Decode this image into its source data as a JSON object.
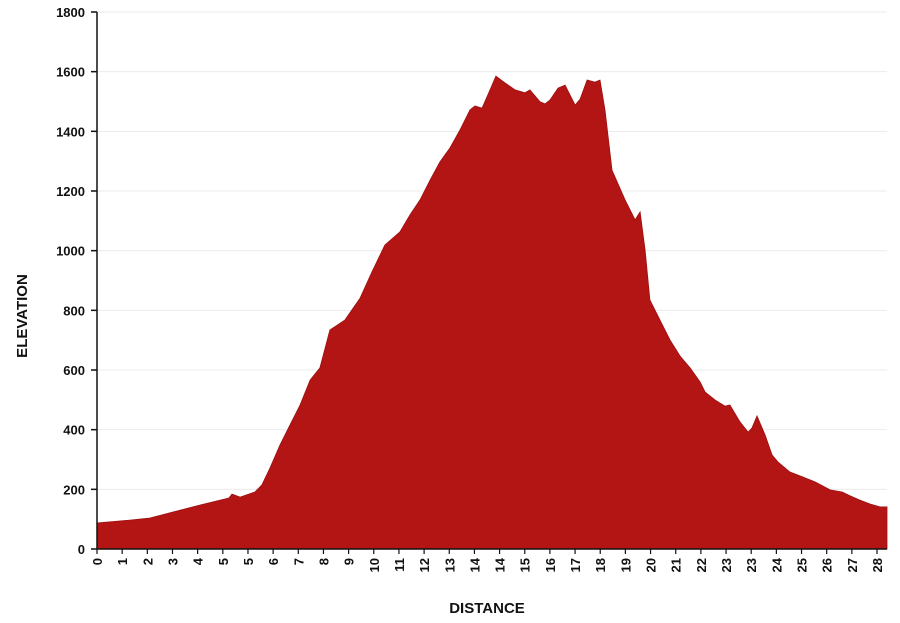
{
  "chart_data": {
    "type": "area",
    "title": "",
    "xlabel": "DISTANCE",
    "ylabel": "ELEVATION",
    "ylim": [
      0,
      1800
    ],
    "xlim": [
      0,
      28.32
    ],
    "yticks": [
      0,
      200,
      400,
      600,
      800,
      1000,
      1200,
      1400,
      1600,
      1800
    ],
    "xtick_labels": [
      "0",
      "1",
      "2",
      "3",
      "4",
      "5",
      "5",
      "6",
      "7",
      "8",
      "9",
      "10",
      "11",
      "12",
      "13",
      "14",
      "14",
      "15",
      "16",
      "17",
      "18",
      "19",
      "20",
      "21",
      "22",
      "23",
      "23",
      "24",
      "25",
      "26",
      "27",
      "28"
    ],
    "grid": true,
    "fill_color": "#B31515",
    "points": [
      [
        0,
        87
      ],
      [
        1.18,
        97
      ],
      [
        1.9,
        104
      ],
      [
        3.68,
        147
      ],
      [
        4.73,
        171
      ],
      [
        4.84,
        184
      ],
      [
        5.13,
        174
      ],
      [
        5.66,
        191
      ],
      [
        5.91,
        215
      ],
      [
        6.2,
        272
      ],
      [
        6.56,
        349
      ],
      [
        6.92,
        416
      ],
      [
        7.28,
        483
      ],
      [
        7.64,
        566
      ],
      [
        7.99,
        607
      ],
      [
        8.35,
        734
      ],
      [
        8.89,
        768
      ],
      [
        9.43,
        841
      ],
      [
        9.86,
        929
      ],
      [
        10.32,
        1019
      ],
      [
        10.86,
        1063
      ],
      [
        11.22,
        1120
      ],
      [
        11.58,
        1170
      ],
      [
        11.94,
        1237
      ],
      [
        12.29,
        1297
      ],
      [
        12.65,
        1344
      ],
      [
        13.01,
        1404
      ],
      [
        13.37,
        1472
      ],
      [
        13.55,
        1485
      ],
      [
        13.8,
        1478
      ],
      [
        14.09,
        1539
      ],
      [
        14.3,
        1585
      ],
      [
        14.63,
        1562
      ],
      [
        14.99,
        1539
      ],
      [
        15.34,
        1529
      ],
      [
        15.52,
        1539
      ],
      [
        15.88,
        1499
      ],
      [
        16.06,
        1492
      ],
      [
        16.24,
        1505
      ],
      [
        16.53,
        1545
      ],
      [
        16.78,
        1555
      ],
      [
        17.14,
        1488
      ],
      [
        17.32,
        1508
      ],
      [
        17.57,
        1572
      ],
      [
        17.85,
        1565
      ],
      [
        18.03,
        1572
      ],
      [
        18.21,
        1472
      ],
      [
        18.46,
        1270
      ],
      [
        18.93,
        1170
      ],
      [
        19.29,
        1103
      ],
      [
        19.47,
        1130
      ],
      [
        19.65,
        1002
      ],
      [
        19.82,
        835
      ],
      [
        20.18,
        768
      ],
      [
        20.54,
        701
      ],
      [
        20.9,
        647
      ],
      [
        21.26,
        607
      ],
      [
        21.62,
        560
      ],
      [
        21.8,
        526
      ],
      [
        22.16,
        499
      ],
      [
        22.51,
        479
      ],
      [
        22.69,
        483
      ],
      [
        23.05,
        426
      ],
      [
        23.34,
        392
      ],
      [
        23.48,
        406
      ],
      [
        23.66,
        446
      ],
      [
        23.95,
        382
      ],
      [
        24.2,
        315
      ],
      [
        24.41,
        292
      ],
      [
        24.84,
        258
      ],
      [
        25.2,
        245
      ],
      [
        25.74,
        225
      ],
      [
        26.28,
        198
      ],
      [
        26.71,
        191
      ],
      [
        27.0,
        178
      ],
      [
        27.35,
        164
      ],
      [
        27.71,
        151
      ],
      [
        28.07,
        141
      ],
      [
        28.32,
        141
      ]
    ]
  }
}
